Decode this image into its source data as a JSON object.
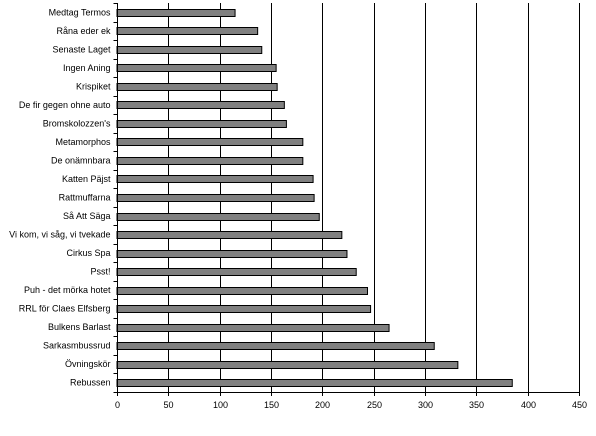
{
  "chart_data": {
    "type": "bar",
    "orientation": "horizontal",
    "title": "",
    "xlabel": "",
    "ylabel": "",
    "categories": [
      "Medtag Termos",
      "Råna eder ek",
      "Senaste Laget",
      "Ingen Aning",
      "Krispiket",
      "De fir gegen ohne auto",
      "Bromskolozzen's",
      "Metamorphos",
      "De onämnbara",
      "Katten Päjst",
      "Rattmuffarna",
      "Så Att Säga",
      "Vi kom, vi såg, vi tvekade",
      "Cirkus Spa",
      "Psst!",
      "Puh - det mörka hotet",
      "RRL för Claes Elfsberg",
      "Bulkens Barlast",
      "Sarkasmbussrud",
      "Övningskör",
      "Rebussen"
    ],
    "values": [
      115,
      137,
      141,
      155,
      156,
      163,
      165,
      181,
      181,
      191,
      192,
      197,
      219,
      224,
      233,
      244,
      247,
      265,
      309,
      332,
      385
    ],
    "xlim": [
      0,
      450
    ],
    "xticks": [
      0,
      50,
      100,
      150,
      200,
      250,
      300,
      350,
      400,
      450
    ],
    "grid": "vertical",
    "legend": "none",
    "bar_color": "#808080",
    "bar_edge_color": "#000000"
  }
}
